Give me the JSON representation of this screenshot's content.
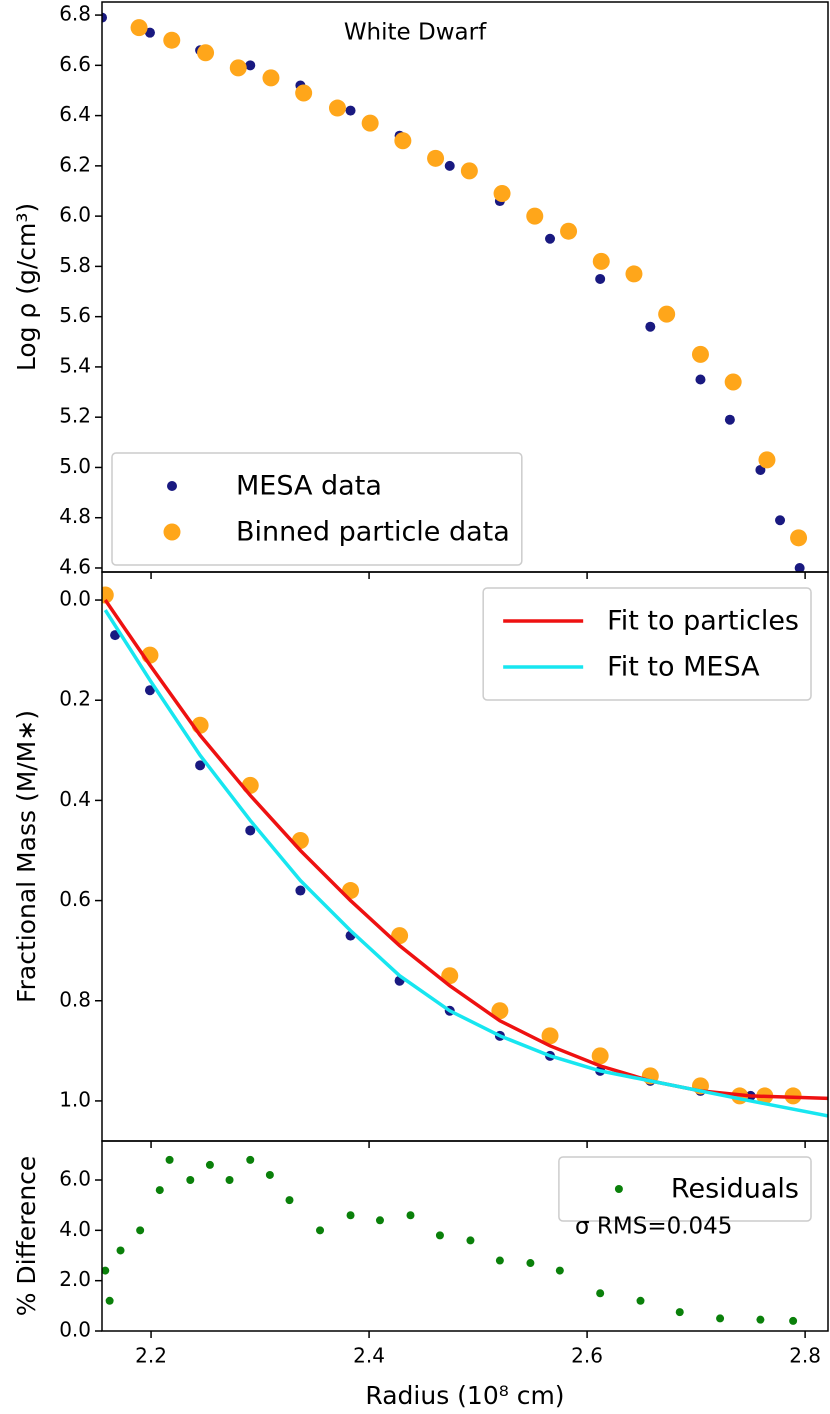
{
  "chart_data": [
    {
      "type": "scatter",
      "title": "White Dwarf",
      "ylabel": "Log ρ (g/cm³)",
      "xlim": [
        2.155,
        2.821
      ],
      "ylim": [
        4.584,
        6.852
      ],
      "yticks": [
        4.6,
        4.8,
        {
          "value": 5,
          "label": "5.0"
        },
        5.2,
        5.4,
        5.6,
        5.8,
        {
          "value": 6,
          "label": "6.0"
        },
        6.2,
        6.4,
        6.6,
        6.8
      ],
      "legend": "lower left",
      "series": [
        {
          "name": "MESA data",
          "color": "#191980",
          "mode": "markers",
          "x": [
            2.155,
            2.199,
            2.245,
            2.291,
            2.337,
            2.383,
            2.428,
            2.474,
            2.52,
            2.566,
            2.612,
            2.658,
            2.704,
            2.731,
            2.759,
            2.777,
            2.795
          ],
          "values": [
            6.79,
            6.73,
            6.66,
            6.6,
            6.52,
            6.42,
            6.32,
            6.2,
            6.06,
            5.91,
            5.75,
            5.56,
            5.35,
            5.19,
            4.99,
            4.79,
            4.6
          ]
        },
        {
          "name": "Binned particle data",
          "color": "#ffa61a",
          "mode": "bigmarkers",
          "x": [
            2.189,
            2.219,
            2.25,
            2.28,
            2.31,
            2.34,
            2.371,
            2.401,
            2.431,
            2.461,
            2.492,
            2.522,
            2.552,
            2.583,
            2.613,
            2.643,
            2.673,
            2.704,
            2.734,
            2.765,
            2.794
          ],
          "values": [
            6.75,
            6.7,
            6.65,
            6.59,
            6.55,
            6.49,
            6.43,
            6.37,
            6.3,
            6.23,
            6.18,
            6.09,
            6.0,
            5.94,
            5.82,
            5.77,
            5.61,
            5.45,
            5.34,
            5.03,
            4.72
          ]
        }
      ]
    },
    {
      "type": "scatter",
      "ylabel": "Fractional Mass (M/M∗)",
      "xlim": [
        2.155,
        2.821
      ],
      "ylim": [
        -0.056,
        1.08
      ],
      "y_inverted": true,
      "yticks": [
        {
          "value": 0,
          "label": "0.0"
        },
        0.2,
        0.4,
        0.6,
        0.8,
        {
          "value": 1,
          "label": "1.0"
        }
      ],
      "legend": "upper right",
      "series": [
        {
          "name": "Fit to particles",
          "color": "#ee1111",
          "mode": "line",
          "legend": true,
          "x": [
            2.158,
            2.199,
            2.245,
            2.291,
            2.337,
            2.383,
            2.428,
            2.474,
            2.52,
            2.566,
            2.612,
            2.658,
            2.704,
            2.75,
            2.821
          ],
          "values": [
            0,
            0.13,
            0.27,
            0.39,
            0.5,
            0.6,
            0.69,
            0.77,
            0.84,
            0.89,
            0.93,
            0.96,
            0.98,
            0.99,
            0.995
          ]
        },
        {
          "name": "Fit to MESA",
          "color": "#17e6f0",
          "mode": "line",
          "legend": true,
          "x": [
            2.158,
            2.199,
            2.245,
            2.291,
            2.337,
            2.383,
            2.428,
            2.474,
            2.52,
            2.566,
            2.612,
            2.658,
            2.704,
            2.75,
            2.821
          ],
          "values": [
            0.02,
            0.16,
            0.31,
            0.44,
            0.56,
            0.66,
            0.75,
            0.82,
            0.87,
            0.91,
            0.94,
            0.96,
            0.98,
            1.0,
            1.03
          ]
        }
      ],
      "background_series": [
        {
          "color": "#191980",
          "mode": "markers",
          "x": [
            2.167,
            2.199,
            2.245,
            2.291,
            2.337,
            2.383,
            2.428,
            2.474,
            2.52,
            2.566,
            2.612,
            2.658,
            2.704,
            2.75
          ],
          "values": [
            0.07,
            0.18,
            0.33,
            0.46,
            0.58,
            0.67,
            0.76,
            0.82,
            0.87,
            0.91,
            0.94,
            0.96,
            0.98,
            0.99
          ]
        },
        {
          "color": "#ffa61a",
          "mode": "bigmarkers",
          "x": [
            2.158,
            2.199,
            2.245,
            2.291,
            2.337,
            2.383,
            2.428,
            2.474,
            2.52,
            2.566,
            2.612,
            2.658,
            2.704,
            2.74,
            2.763,
            2.789
          ],
          "values": [
            -0.01,
            0.11,
            0.25,
            0.37,
            0.48,
            0.58,
            0.67,
            0.75,
            0.82,
            0.87,
            0.91,
            0.95,
            0.97,
            0.99,
            0.99,
            0.99
          ]
        }
      ]
    },
    {
      "type": "scatter",
      "ylabel": "% Difference",
      "xlabel": "Radius (10⁸ cm)",
      "xlim": [
        2.155,
        2.821
      ],
      "ylim": [
        0,
        7.55
      ],
      "xticks": [
        2.2,
        2.4,
        2.6,
        2.8
      ],
      "yticks": [
        {
          "value": 0,
          "label": "0.0"
        },
        {
          "value": 2,
          "label": "2.0"
        },
        {
          "value": 4,
          "label": "4.0"
        },
        {
          "value": 6,
          "label": "6.0"
        }
      ],
      "legend": "upper right",
      "annotation": "σ RMS=0.045",
      "series": [
        {
          "name": "Residuals",
          "color": "#0a800a",
          "mode": "smallmarkers",
          "x": [
            2.158,
            2.162,
            2.172,
            2.19,
            2.208,
            2.217,
            2.236,
            2.254,
            2.272,
            2.291,
            2.309,
            2.327,
            2.355,
            2.383,
            2.41,
            2.438,
            2.465,
            2.493,
            2.52,
            2.548,
            2.575,
            2.612,
            2.649,
            2.685,
            2.722,
            2.759,
            2.789
          ],
          "values": [
            2.4,
            1.2,
            3.2,
            4.0,
            5.6,
            6.8,
            6.0,
            6.6,
            6.0,
            6.8,
            6.2,
            5.2,
            4.0,
            4.6,
            4.4,
            4.6,
            3.8,
            3.6,
            2.8,
            2.7,
            2.4,
            1.5,
            1.2,
            0.75,
            0.5,
            0.45,
            0.4
          ]
        }
      ]
    }
  ]
}
